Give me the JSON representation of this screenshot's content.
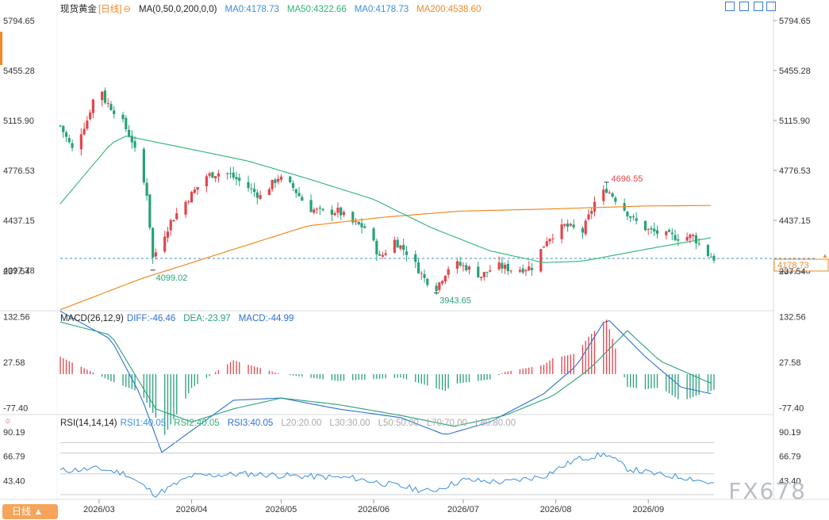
{
  "header": {
    "symbol": "现货黄金",
    "period": "[日线]",
    "ma_label": "MA(0,50,0,200,0,0)",
    "ma0": "MA0:4178.73",
    "ma50": "MA50:4322.66",
    "ma0b": "MA0:4178.73",
    "ma200": "MA200:4538.60"
  },
  "macd_header": {
    "label": "MACD(26,12,9)",
    "diff": "DIFF:-46.46",
    "dea": "DEA:-23.97",
    "macd": "MACD:-44.99"
  },
  "rsi_header": {
    "label": "RSI(14,14,14)",
    "rsi1": "RSI1:40.05",
    "rsi2": "RSI2:40.05",
    "rsi3": "RSI3:40.05",
    "l20": "L20:20.00",
    "l30": "L30:30.00",
    "l50": "L50:50.00",
    "l70": "L70:70.00",
    "l80": "L80:80.00"
  },
  "period_button": "日线 ▲",
  "watermark": "FX678",
  "colors": {
    "up": "#e2454b",
    "down": "#27a17a",
    "ma50": "#2bb673",
    "ma200": "#f08a24",
    "diff": "#2f6fd6",
    "dea": "#27a17a",
    "rsi": "#3a8fd9",
    "price_tag": "#f08a24"
  },
  "chart_data": {
    "type": "candlestick",
    "price_axis_ticks": [
      "5794.65",
      "5455.28",
      "5115.90",
      "4776.53",
      "4437.15",
      "4097.78"
    ],
    "current_price": "4178.73",
    "annotations": [
      {
        "label": "4696.55",
        "type": "high"
      },
      {
        "label": "4099.02",
        "type": "low"
      },
      {
        "label": "3943.65",
        "type": "low"
      }
    ],
    "x_ticks": [
      "2026/03",
      "2026/04",
      "2026/05",
      "2026/06",
      "2026/07",
      "2026/08",
      "2026/09"
    ],
    "price_anchors": [
      [
        "2026-02-16",
        5080
      ],
      [
        "2026-02-20",
        4920
      ],
      [
        "2026-02-25",
        5120
      ],
      [
        "2026-03-01",
        5390
      ],
      [
        "2026-03-03",
        5250
      ],
      [
        "2026-03-08",
        5140
      ],
      [
        "2026-03-12",
        4980
      ],
      [
        "2026-03-17",
        4620
      ],
      [
        "2026-03-19",
        4180
      ],
      [
        "2026-03-25",
        4430
      ],
      [
        "2026-03-31",
        4590
      ],
      [
        "2026-04-06",
        4740
      ],
      [
        "2026-04-12",
        4770
      ],
      [
        "2026-04-18",
        4690
      ],
      [
        "2026-04-24",
        4600
      ],
      [
        "2026-04-30",
        4730
      ],
      [
        "2026-05-05",
        4660
      ],
      [
        "2026-05-10",
        4520
      ],
      [
        "2026-05-15",
        4490
      ],
      [
        "2026-05-20",
        4500
      ],
      [
        "2026-05-25",
        4420
      ],
      [
        "2026-05-30",
        4380
      ],
      [
        "2026-06-03",
        4180
      ],
      [
        "2026-06-08",
        4300
      ],
      [
        "2026-06-13",
        4200
      ],
      [
        "2026-06-18",
        4040
      ],
      [
        "2026-06-22",
        3980
      ],
      [
        "2026-06-27",
        4150
      ],
      [
        "2026-07-02",
        4120
      ],
      [
        "2026-07-07",
        4060
      ],
      [
        "2026-07-12",
        4130
      ],
      [
        "2026-07-18",
        4100
      ],
      [
        "2026-07-24",
        4120
      ],
      [
        "2026-07-29",
        4310
      ],
      [
        "2026-08-04",
        4400
      ],
      [
        "2026-08-10",
        4360
      ],
      [
        "2026-08-14",
        4560
      ],
      [
        "2026-08-18",
        4650
      ],
      [
        "2026-08-22",
        4560
      ],
      [
        "2026-08-27",
        4440
      ],
      [
        "2026-09-01",
        4370
      ],
      [
        "2026-09-06",
        4340
      ],
      [
        "2026-09-11",
        4320
      ],
      [
        "2026-09-16",
        4330
      ],
      [
        "2026-09-20",
        4220
      ],
      [
        "2026-09-23",
        4178.73
      ]
    ],
    "ma50_anchors": [
      [
        "2026-02-16",
        4550
      ],
      [
        "2026-03-05",
        4960
      ],
      [
        "2026-03-10",
        5010
      ],
      [
        "2026-04-01",
        4920
      ],
      [
        "2026-04-20",
        4840
      ],
      [
        "2026-05-10",
        4720
      ],
      [
        "2026-06-01",
        4580
      ],
      [
        "2026-06-20",
        4390
      ],
      [
        "2026-07-10",
        4230
      ],
      [
        "2026-07-28",
        4150
      ],
      [
        "2026-08-10",
        4160
      ],
      [
        "2026-08-31",
        4240
      ],
      [
        "2026-09-23",
        4322.66
      ]
    ],
    "ma200_anchors": [
      [
        "2026-02-16",
        3830
      ],
      [
        "2026-03-15",
        4040
      ],
      [
        "2026-04-15",
        4240
      ],
      [
        "2026-05-10",
        4400
      ],
      [
        "2026-06-05",
        4460
      ],
      [
        "2026-06-30",
        4500
      ],
      [
        "2026-07-31",
        4515
      ],
      [
        "2026-08-31",
        4535
      ],
      [
        "2026-09-23",
        4538.6
      ]
    ],
    "macd_axis_ticks": [
      "237.54",
      "132.56",
      "27.58",
      "-77.40"
    ],
    "diff_anchors": [
      [
        "2026-02-16",
        145
      ],
      [
        "2026-03-05",
        80
      ],
      [
        "2026-03-15",
        -50
      ],
      [
        "2026-03-22",
        -180
      ],
      [
        "2026-04-01",
        -130
      ],
      [
        "2026-04-15",
        -60
      ],
      [
        "2026-05-01",
        -55
      ],
      [
        "2026-05-20",
        -80
      ],
      [
        "2026-06-10",
        -100
      ],
      [
        "2026-06-25",
        -140
      ],
      [
        "2026-07-10",
        -110
      ],
      [
        "2026-07-28",
        -45
      ],
      [
        "2026-08-08",
        20
      ],
      [
        "2026-08-18",
        130
      ],
      [
        "2026-08-31",
        40
      ],
      [
        "2026-09-12",
        -30
      ],
      [
        "2026-09-23",
        -46.46
      ]
    ],
    "dea_anchors": [
      [
        "2026-02-16",
        120
      ],
      [
        "2026-03-05",
        90
      ],
      [
        "2026-03-20",
        -80
      ],
      [
        "2026-04-01",
        -110
      ],
      [
        "2026-04-15",
        -80
      ],
      [
        "2026-05-01",
        -55
      ],
      [
        "2026-05-20",
        -70
      ],
      [
        "2026-06-10",
        -95
      ],
      [
        "2026-06-28",
        -120
      ],
      [
        "2026-07-15",
        -95
      ],
      [
        "2026-07-31",
        -50
      ],
      [
        "2026-08-12",
        10
      ],
      [
        "2026-08-25",
        100
      ],
      [
        "2026-09-05",
        30
      ],
      [
        "2026-09-23",
        -23.97
      ]
    ],
    "rsi_axis_ticks": [
      "90.19",
      "66.79",
      "43.40"
    ],
    "rsi_anchors": [
      [
        "2026-02-16",
        53
      ],
      [
        "2026-03-01",
        55
      ],
      [
        "2026-03-10",
        50
      ],
      [
        "2026-03-20",
        30
      ],
      [
        "2026-04-01",
        48
      ],
      [
        "2026-04-20",
        50
      ],
      [
        "2026-05-05",
        48
      ],
      [
        "2026-05-25",
        46
      ],
      [
        "2026-06-10",
        38
      ],
      [
        "2026-06-20",
        33
      ],
      [
        "2026-07-01",
        44
      ],
      [
        "2026-07-15",
        42
      ],
      [
        "2026-07-28",
        48
      ],
      [
        "2026-08-08",
        64
      ],
      [
        "2026-08-18",
        69
      ],
      [
        "2026-08-25",
        55
      ],
      [
        "2026-09-05",
        49
      ],
      [
        "2026-09-15",
        46
      ],
      [
        "2026-09-23",
        40.05
      ]
    ]
  }
}
